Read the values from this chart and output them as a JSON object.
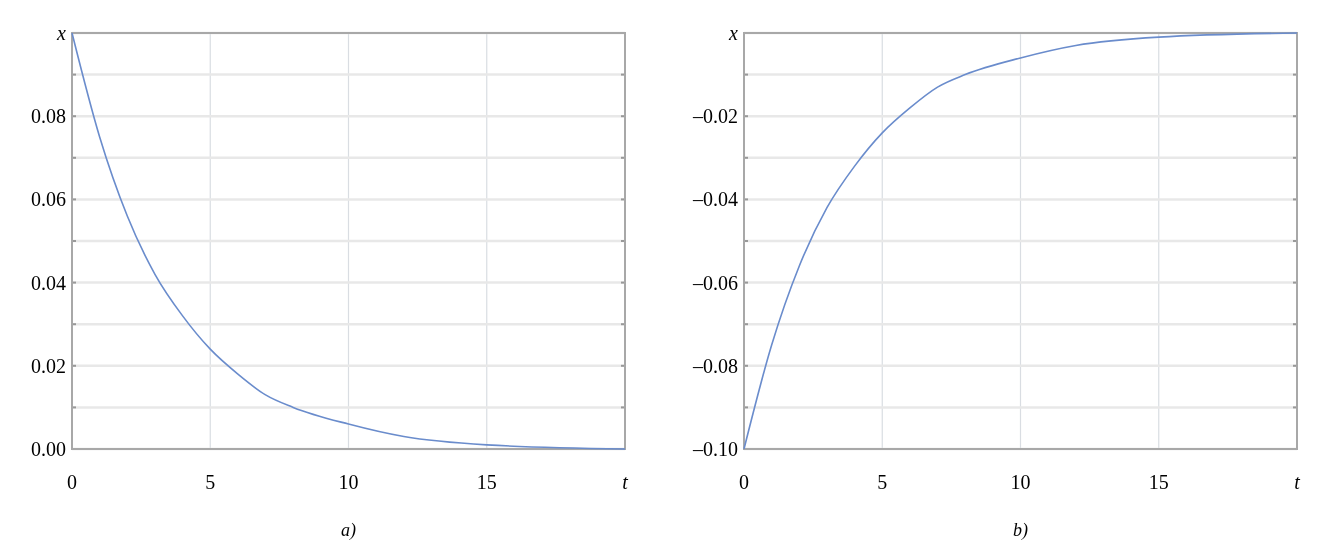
{
  "chart_data": [
    {
      "type": "line",
      "title": "a)",
      "x": [
        0,
        1,
        2,
        3,
        4,
        5,
        6,
        7,
        8,
        10,
        12,
        15,
        20
      ],
      "series": [
        {
          "color": "#6a8ccc",
          "values": [
            0.1,
            0.075,
            0.056,
            0.042,
            0.032,
            0.024,
            0.018,
            0.013,
            0.01,
            0.006,
            0.003,
            0.001,
            0.0
          ]
        }
      ],
      "xlim": [
        0,
        20
      ],
      "xticks": [
        0,
        5,
        10,
        15,
        {
          "value": 20,
          "label": "t"
        }
      ],
      "ylim": [
        0,
        0.1
      ],
      "yticks": [
        {
          "value": 0,
          "label": "0.00"
        },
        {
          "value": 0.01,
          "label": null
        },
        {
          "value": 0.02,
          "label": "0.02"
        },
        {
          "value": 0.03,
          "label": null
        },
        {
          "value": 0.04,
          "label": "0.04"
        },
        {
          "value": 0.05,
          "label": null
        },
        {
          "value": 0.06,
          "label": "0.06"
        },
        {
          "value": 0.07,
          "label": null
        },
        {
          "value": 0.08,
          "label": "0.08"
        },
        {
          "value": 0.09,
          "label": null
        },
        {
          "value": 0.1,
          "label": "x"
        }
      ],
      "grid": true,
      "marker": "none",
      "line_style": "solid"
    },
    {
      "type": "line",
      "title": "b)",
      "x": [
        0,
        1,
        2,
        3,
        4,
        5,
        6,
        7,
        8,
        10,
        12,
        15,
        20
      ],
      "series": [
        {
          "color": "#6a8ccc",
          "values": [
            -0.1,
            -0.075,
            -0.056,
            -0.042,
            -0.032,
            -0.024,
            -0.018,
            -0.013,
            -0.01,
            -0.006,
            -0.003,
            -0.001,
            0.0
          ]
        }
      ],
      "xlim": [
        0,
        20
      ],
      "xticks": [
        0,
        5,
        10,
        15,
        {
          "value": 20,
          "label": "t"
        }
      ],
      "ylim": [
        -0.1,
        0
      ],
      "yticks": [
        {
          "value": -0.1,
          "label": "–0.10"
        },
        {
          "value": -0.09,
          "label": null
        },
        {
          "value": -0.08,
          "label": "–0.08"
        },
        {
          "value": -0.07,
          "label": null
        },
        {
          "value": -0.06,
          "label": "–0.06"
        },
        {
          "value": -0.05,
          "label": null
        },
        {
          "value": -0.04,
          "label": "–0.04"
        },
        {
          "value": -0.03,
          "label": null
        },
        {
          "value": -0.02,
          "label": "–0.02"
        },
        {
          "value": -0.01,
          "label": null
        },
        {
          "value": 0,
          "label": "x"
        }
      ],
      "grid": true,
      "marker": "none",
      "line_style": "solid"
    }
  ]
}
